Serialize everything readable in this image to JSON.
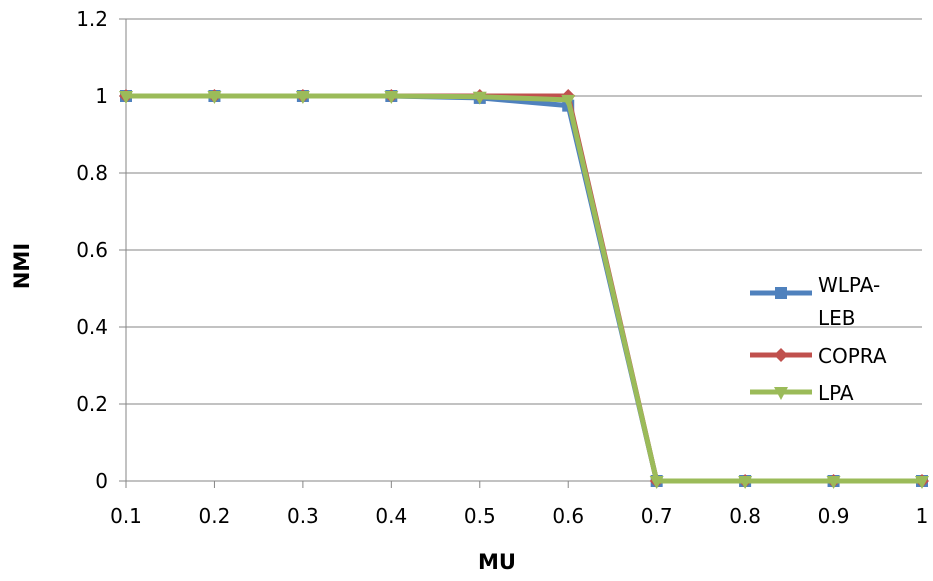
{
  "chart_data": {
    "type": "line",
    "title": "",
    "xlabel": "MU",
    "ylabel": "NMI",
    "x": [
      "0.1",
      "0.2",
      "0.3",
      "0.4",
      "0.5",
      "0.6",
      "0.7",
      "0.8",
      "0.9",
      "1"
    ],
    "xlim": [
      0.1,
      1.0
    ],
    "ylim": [
      0,
      1.2
    ],
    "yticks": [
      "0",
      "0.2",
      "0.4",
      "0.6",
      "0.8",
      "1",
      "1.2"
    ],
    "grid": "horizontal",
    "legend_position": "right",
    "series": [
      {
        "name": "WLPA-LEB",
        "legend_lines": [
          "WLPA-",
          "LEB"
        ],
        "marker": "square",
        "color": "#4f81bd",
        "values": [
          1,
          1,
          1,
          1,
          0.995,
          0.975,
          0,
          0,
          0,
          0
        ]
      },
      {
        "name": "COPRA",
        "legend_lines": [
          "COPRA"
        ],
        "marker": "diamond",
        "color": "#c0504d",
        "values": [
          1,
          1,
          1,
          1,
          1,
          1,
          0,
          0,
          0,
          0
        ]
      },
      {
        "name": "LPA",
        "legend_lines": [
          "LPA"
        ],
        "marker": "triangle-down",
        "color": "#9bbb59",
        "values": [
          1,
          1,
          1,
          1,
          0.998,
          0.99,
          0,
          0,
          0,
          0
        ]
      }
    ]
  }
}
